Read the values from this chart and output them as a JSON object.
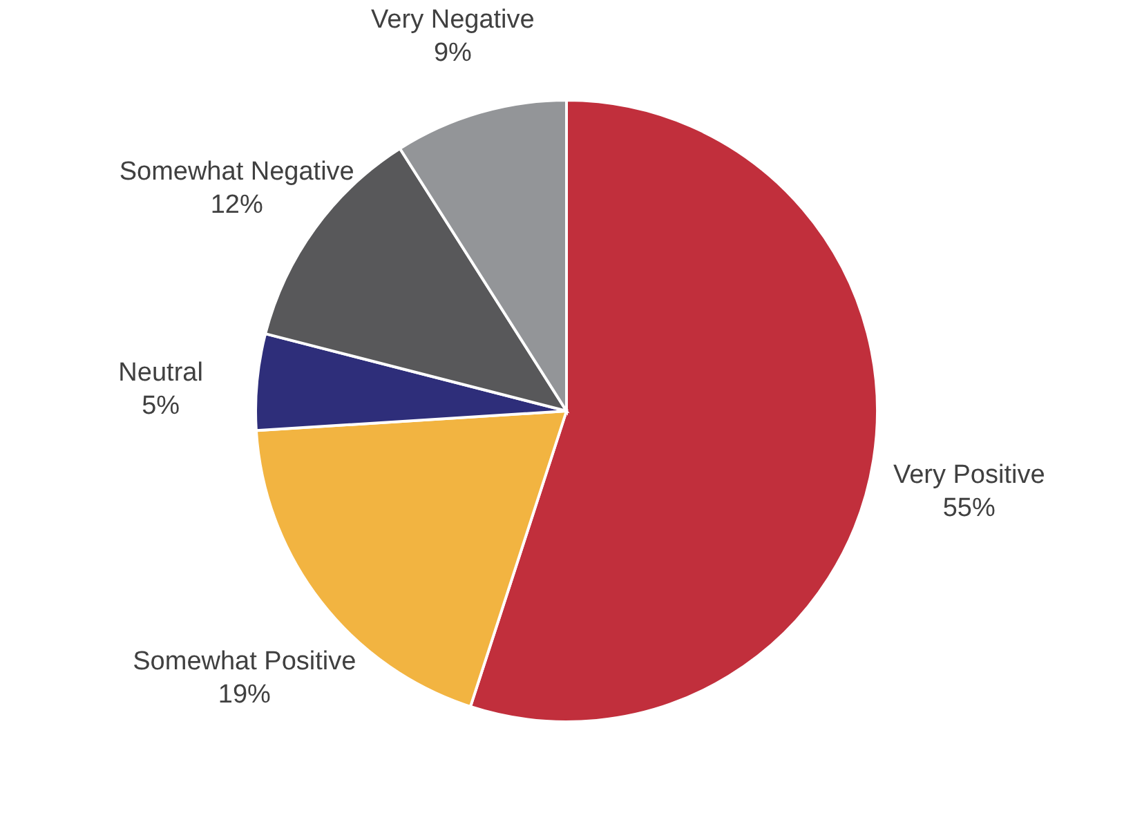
{
  "chart_data": {
    "type": "pie",
    "categories": [
      "Very Positive",
      "Somewhat Positive",
      "Neutral",
      "Somewhat Negative",
      "Very Negative"
    ],
    "values": [
      55,
      19,
      5,
      12,
      9
    ],
    "colors": [
      "#c12f3c",
      "#f2b441",
      "#2e2e7a",
      "#58585a",
      "#939598"
    ],
    "value_labels": [
      "55%",
      "19%",
      "5%",
      "12%",
      "9%"
    ]
  }
}
